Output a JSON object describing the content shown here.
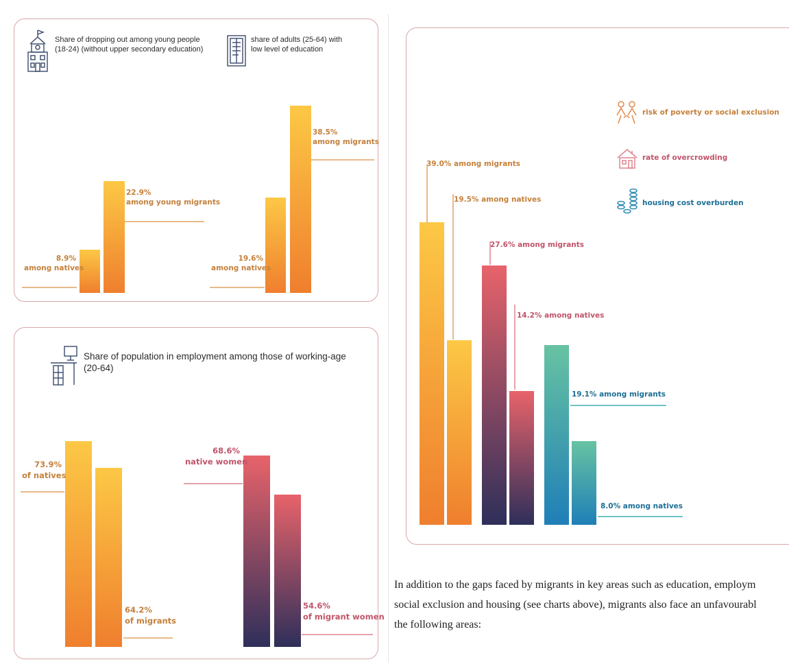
{
  "colors": {
    "orange_top": "#fcc845",
    "orange_bottom": "#ef7f2e",
    "pink_top": "#e8636a",
    "pink_bottom": "#2e2f5a",
    "teal_top": "#67c3a2",
    "teal_bottom": "#1f7fb7",
    "label_orange": "#c4813c",
    "label_pink": "#c0546a",
    "label_blue": "#1e6f95",
    "panel_border": "#d9a7a7"
  },
  "panels": {
    "education": {
      "title_left": "Share of dropping out among young people (18-24) (without upper secondary education)",
      "title_left_lines": [
        "Share of dropping out among young people",
        "(18-24) (without upper secondary education)"
      ],
      "title_right_lines": [
        "share of adults (25-64) with",
        "low level of education"
      ],
      "icon_left": "school-building-icon",
      "icon_right": "book-document-icon"
    },
    "employment": {
      "title_lines": [
        "Share of population in employment among those of working-age",
        "(20-64)"
      ],
      "icon": "office-desk-computer-icon"
    },
    "social": {
      "legend": [
        {
          "label": "risk of poverty or social exclusion",
          "icon": "people-group-icon",
          "color": "#c4813c"
        },
        {
          "label": "rate of overcrowding",
          "icon": "house-icon",
          "color": "#c0546a"
        },
        {
          "label": "housing cost overburden",
          "icon": "coin-stack-icon",
          "color": "#1e6f95"
        }
      ]
    }
  },
  "chart_data": [
    {
      "type": "bar",
      "title": "Share of dropping out among young people (18-24) (without upper secondary education)",
      "unit": "%",
      "values": [
        8.9,
        22.9
      ],
      "labels": [
        {
          "value": "8.9%",
          "group": "among natives"
        },
        {
          "value": "22.9%",
          "group": "among young migrants"
        }
      ]
    },
    {
      "type": "bar",
      "title": "share of adults (25-64) with low level of education",
      "unit": "%",
      "values": [
        19.6,
        38.5
      ],
      "labels": [
        {
          "value": "19.6%",
          "group": "among natives"
        },
        {
          "value": "38.5%",
          "group": "among migrants"
        }
      ]
    },
    {
      "type": "bar",
      "title": "Share of population in employment among those of working-age (20-64)",
      "unit": "%",
      "values": [
        73.9,
        64.2
      ],
      "labels": [
        {
          "value": "73.9%",
          "group": "of natives"
        },
        {
          "value": "64.2%",
          "group": "of migrants"
        }
      ]
    },
    {
      "type": "bar",
      "title": "Share of population in employment among those of working-age (20-64)",
      "unit": "%",
      "values": [
        68.6,
        54.6
      ],
      "labels": [
        {
          "value": "68.6%",
          "group": "native women"
        },
        {
          "value": "54.6%",
          "group": "of migrant women"
        }
      ]
    },
    {
      "type": "bar",
      "series_names": [
        "risk of poverty or social exclusion",
        "rate of overcrowding",
        "housing cost overburden"
      ],
      "unit": "%",
      "values": [
        39.0,
        19.5,
        27.6,
        14.2,
        19.1,
        8.0
      ],
      "labels": [
        {
          "text": "39.0% among migrants"
        },
        {
          "text": "19.5% among natives"
        },
        {
          "text": "27.6% among migrants"
        },
        {
          "text": "14.2% among natives"
        },
        {
          "text": "19.1% among migrants"
        },
        {
          "text": "8.0% among natives"
        }
      ]
    }
  ],
  "bodytext": {
    "lines": [
      "In addition to the gaps faced by migrants in key areas such as education, employm",
      "social exclusion and housing (see charts above), migrants also face an unfavourabl",
      "the following areas:"
    ]
  }
}
